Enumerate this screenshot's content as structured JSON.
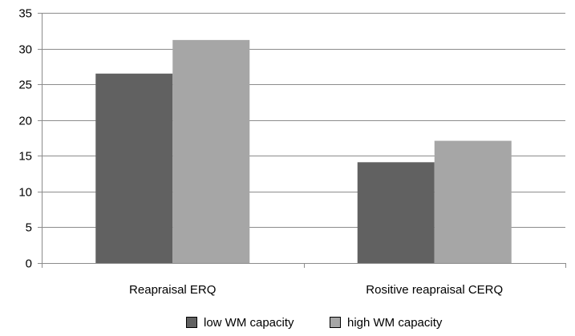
{
  "chart_data": {
    "type": "bar",
    "title": "",
    "xlabel": "",
    "ylabel": "",
    "ylim": [
      0,
      35
    ],
    "yticks": [
      0,
      5,
      10,
      15,
      20,
      25,
      30,
      35
    ],
    "grid": true,
    "legend_position": "bottom",
    "categories": [
      "Reapraisal ERQ",
      "Rositive reapraisal CERQ"
    ],
    "series": [
      {
        "name": "low WM capacity",
        "color": "#616161",
        "values": [
          26.5,
          14.1
        ]
      },
      {
        "name": "high WM capacity",
        "color": "#a6a6a6",
        "values": [
          31.2,
          17.1
        ]
      }
    ]
  }
}
